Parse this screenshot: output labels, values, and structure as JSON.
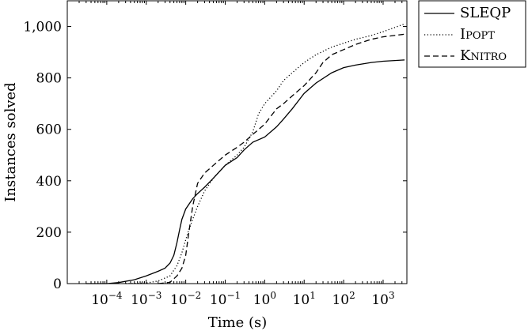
{
  "chart_data": {
    "type": "line",
    "xlabel": "Time (s)",
    "ylabel": "Instances solved",
    "xscale": "log",
    "xlim": [
      1e-05,
      4000
    ],
    "ylim": [
      0,
      1100
    ],
    "x_ticks": [
      {
        "value": 0.0001,
        "base": "10",
        "exp": "−4"
      },
      {
        "value": 0.001,
        "base": "10",
        "exp": "−3"
      },
      {
        "value": 0.01,
        "base": "10",
        "exp": "−2"
      },
      {
        "value": 0.1,
        "base": "10",
        "exp": "−1"
      },
      {
        "value": 1,
        "base": "10",
        "exp": "0"
      },
      {
        "value": 10,
        "base": "10",
        "exp": "1"
      },
      {
        "value": 100,
        "base": "10",
        "exp": "2"
      },
      {
        "value": 1000,
        "base": "10",
        "exp": "3"
      }
    ],
    "y_ticks": [
      {
        "value": 0,
        "label": "0"
      },
      {
        "value": 200,
        "label": "200"
      },
      {
        "value": 400,
        "label": "400"
      },
      {
        "value": 600,
        "label": "600"
      },
      {
        "value": 800,
        "label": "800"
      },
      {
        "value": 1000,
        "label": "1,000"
      }
    ],
    "grid": false,
    "legend_position": "outside-top-right",
    "series": [
      {
        "name": "SLEQP",
        "style": "solid",
        "color": "#000000",
        "points": [
          [
            3e-05,
            0
          ],
          [
            0.0001,
            0
          ],
          [
            0.0002,
            4
          ],
          [
            0.0005,
            15
          ],
          [
            0.001,
            30
          ],
          [
            0.002,
            48
          ],
          [
            0.003,
            60
          ],
          [
            0.004,
            80
          ],
          [
            0.005,
            110
          ],
          [
            0.006,
            160
          ],
          [
            0.007,
            210
          ],
          [
            0.008,
            250
          ],
          [
            0.01,
            290
          ],
          [
            0.015,
            330
          ],
          [
            0.02,
            350
          ],
          [
            0.03,
            375
          ],
          [
            0.05,
            410
          ],
          [
            0.1,
            460
          ],
          [
            0.2,
            490
          ],
          [
            0.3,
            520
          ],
          [
            0.5,
            550
          ],
          [
            1,
            570
          ],
          [
            2,
            610
          ],
          [
            3,
            640
          ],
          [
            5,
            680
          ],
          [
            10,
            740
          ],
          [
            20,
            780
          ],
          [
            50,
            820
          ],
          [
            100,
            840
          ],
          [
            200,
            850
          ],
          [
            500,
            860
          ],
          [
            1000,
            865
          ],
          [
            3500,
            870
          ]
        ]
      },
      {
        "name": "IPOPT",
        "style": "dotted",
        "color": "#000000",
        "points": [
          [
            0.0003,
            0
          ],
          [
            0.001,
            2
          ],
          [
            0.002,
            10
          ],
          [
            0.004,
            30
          ],
          [
            0.006,
            70
          ],
          [
            0.008,
            120
          ],
          [
            0.01,
            170
          ],
          [
            0.012,
            210
          ],
          [
            0.015,
            250
          ],
          [
            0.02,
            300
          ],
          [
            0.03,
            360
          ],
          [
            0.05,
            410
          ],
          [
            0.1,
            460
          ],
          [
            0.2,
            500
          ],
          [
            0.3,
            530
          ],
          [
            0.5,
            590
          ],
          [
            0.7,
            660
          ],
          [
            1,
            700
          ],
          [
            2,
            750
          ],
          [
            3,
            790
          ],
          [
            5,
            820
          ],
          [
            10,
            860
          ],
          [
            20,
            890
          ],
          [
            50,
            920
          ],
          [
            100,
            935
          ],
          [
            200,
            950
          ],
          [
            500,
            965
          ],
          [
            1000,
            980
          ],
          [
            3500,
            1010
          ]
        ]
      },
      {
        "name": "KNITRO",
        "style": "dashed",
        "color": "#000000",
        "points": [
          [
            0.002,
            0
          ],
          [
            0.004,
            5
          ],
          [
            0.006,
            30
          ],
          [
            0.008,
            60
          ],
          [
            0.01,
            110
          ],
          [
            0.012,
            200
          ],
          [
            0.015,
            300
          ],
          [
            0.02,
            390
          ],
          [
            0.03,
            430
          ],
          [
            0.05,
            460
          ],
          [
            0.1,
            500
          ],
          [
            0.2,
            530
          ],
          [
            0.3,
            550
          ],
          [
            0.5,
            580
          ],
          [
            1,
            620
          ],
          [
            2,
            680
          ],
          [
            3,
            700
          ],
          [
            5,
            730
          ],
          [
            10,
            770
          ],
          [
            20,
            820
          ],
          [
            30,
            860
          ],
          [
            50,
            890
          ],
          [
            100,
            910
          ],
          [
            200,
            930
          ],
          [
            500,
            950
          ],
          [
            1000,
            960
          ],
          [
            3500,
            970
          ]
        ]
      }
    ]
  }
}
